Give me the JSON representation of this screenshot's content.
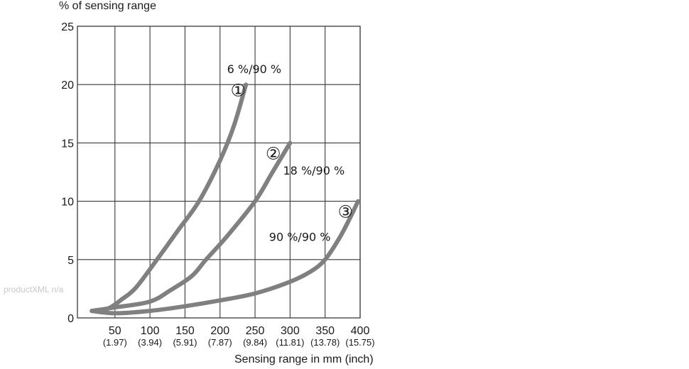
{
  "watermark": "productXML n/a",
  "chart_data": {
    "type": "line",
    "title": "",
    "ylabel": "% of sensing range",
    "xlabel": "Sensing range in mm (inch)",
    "xlim": [
      0,
      400
    ],
    "ylim": [
      0,
      25
    ],
    "grid": true,
    "x_ticks": [
      50,
      100,
      150,
      200,
      250,
      300,
      350,
      400
    ],
    "x_tick_labels": [
      "50",
      "100",
      "150",
      "200",
      "250",
      "300",
      "350",
      "400"
    ],
    "x_tick_sublabels": [
      "(1.97)",
      "(3.94)",
      "(5.91)",
      "(7.87)",
      "(9.84)",
      "(11.81)",
      "(13.78)",
      "(15.75)"
    ],
    "y_ticks": [
      0,
      5,
      10,
      15,
      20,
      25
    ],
    "y_tick_labels": [
      "0",
      "5",
      "10",
      "15",
      "20",
      "25"
    ],
    "line_color": "#808080",
    "series": [
      {
        "name": "6 %/90 %",
        "marker": "①",
        "x": [
          17,
          40,
          60,
          80,
          110,
          140,
          170,
          200,
          220,
          237
        ],
        "y": [
          0.6,
          0.8,
          1.6,
          2.6,
          5.0,
          7.5,
          10.0,
          13.5,
          16.5,
          20.0
        ]
      },
      {
        "name": "18 %/90 %",
        "marker": "②",
        "x": [
          17,
          50,
          100,
          130,
          160,
          180,
          210,
          250,
          275,
          300
        ],
        "y": [
          0.6,
          0.9,
          1.4,
          2.4,
          3.6,
          5.0,
          7.0,
          10.0,
          12.5,
          15.0
        ]
      },
      {
        "name": "90 %/90 %",
        "marker": "③",
        "x": [
          17,
          50,
          100,
          150,
          200,
          250,
          300,
          330,
          350,
          370,
          385,
          397
        ],
        "y": [
          0.6,
          0.4,
          0.6,
          1.0,
          1.5,
          2.1,
          3.1,
          4.0,
          5.0,
          6.8,
          8.5,
          10.0
        ]
      }
    ],
    "annotations": [
      {
        "text": "6 %/90 %",
        "x": 210,
        "y": 21
      },
      {
        "text": "18 %/90 %",
        "x": 290,
        "y": 12.3
      },
      {
        "text": "90 %/90 %",
        "x": 270,
        "y": 6.6
      },
      {
        "text": "①",
        "x": 215,
        "y": 19
      },
      {
        "text": "②",
        "x": 265,
        "y": 13.6
      },
      {
        "text": "③",
        "x": 368,
        "y": 8.6
      }
    ]
  }
}
